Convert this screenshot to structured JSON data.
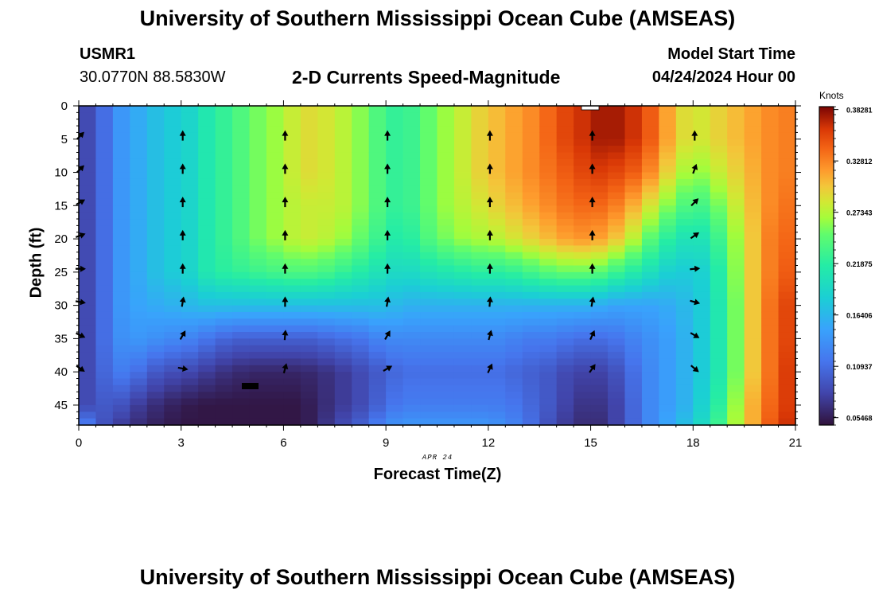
{
  "header": {
    "title": "University of Southern Mississippi Ocean Cube (AMSEAS)",
    "station_id": "USMR1",
    "coords": "30.0770N  88.5830W",
    "subtitle": "2-D Currents Speed-Magnitude",
    "model_start_label": "Model Start Time",
    "model_start_value": "04/24/2024 Hour 00"
  },
  "footer": {
    "title": "University of Southern Mississippi Ocean Cube (AMSEAS)"
  },
  "chart_data": {
    "type": "heatmap",
    "title": "2-D Currents Speed-Magnitude",
    "xlabel": "Forecast Time(Z)",
    "ylabel": "Depth (ft)",
    "date_label": "APR 24",
    "x_ticks": [
      0,
      3,
      6,
      9,
      12,
      15,
      18,
      21
    ],
    "y_ticks": [
      0,
      5,
      10,
      15,
      20,
      25,
      30,
      35,
      40,
      45
    ],
    "xlim": [
      0,
      21
    ],
    "ylim": [
      0,
      48
    ],
    "colorbar": {
      "unit": "Knots",
      "min": 0.0468,
      "max": 0.3859,
      "tick_values": [
        0.38281,
        0.32812,
        0.27343,
        0.21875,
        0.16406,
        0.10937,
        0.05468
      ],
      "tick_labels": [
        "0.38281",
        "0.32812",
        "0.27343",
        "0.21875",
        "0.16406",
        "0.10937",
        "0.05468"
      ]
    },
    "grid_times": [
      0,
      0.5,
      1,
      1.5,
      2,
      2.5,
      3,
      3.5,
      4,
      4.5,
      5,
      5.5,
      6,
      6.5,
      7,
      7.5,
      8,
      8.5,
      9,
      9.5,
      10,
      10.5,
      11,
      11.5,
      12,
      12.5,
      13,
      13.5,
      14,
      14.5,
      15,
      15.5,
      16,
      16.5,
      17,
      17.5,
      18,
      18.5,
      19,
      19.5,
      20,
      20.5,
      21
    ],
    "grid_depths": [
      0,
      5,
      10,
      15,
      20,
      25,
      30,
      35,
      40,
      45,
      48
    ],
    "speed_grid": [
      [
        0.08,
        0.08,
        0.08,
        0.08,
        0.08,
        0.08,
        0.08,
        0.08,
        0.08,
        0.08,
        0.14
      ],
      [
        0.09,
        0.09,
        0.09,
        0.09,
        0.09,
        0.09,
        0.09,
        0.09,
        0.09,
        0.09,
        0.1
      ],
      [
        0.13,
        0.13,
        0.13,
        0.13,
        0.13,
        0.13,
        0.13,
        0.13,
        0.12,
        0.1,
        0.08
      ],
      [
        0.15,
        0.15,
        0.15,
        0.15,
        0.15,
        0.15,
        0.15,
        0.14,
        0.12,
        0.08,
        0.07
      ],
      [
        0.16,
        0.16,
        0.16,
        0.16,
        0.16,
        0.16,
        0.15,
        0.14,
        0.1,
        0.07,
        0.06
      ],
      [
        0.18,
        0.18,
        0.18,
        0.18,
        0.18,
        0.18,
        0.16,
        0.13,
        0.09,
        0.06,
        0.055
      ],
      [
        0.18,
        0.18,
        0.18,
        0.18,
        0.18,
        0.18,
        0.16,
        0.13,
        0.085,
        0.055,
        0.05
      ],
      [
        0.2,
        0.2,
        0.2,
        0.2,
        0.2,
        0.2,
        0.17,
        0.12,
        0.08,
        0.05,
        0.05
      ],
      [
        0.22,
        0.22,
        0.22,
        0.22,
        0.22,
        0.22,
        0.17,
        0.11,
        0.07,
        0.05,
        0.05
      ],
      [
        0.23,
        0.23,
        0.23,
        0.23,
        0.23,
        0.22,
        0.17,
        0.1,
        0.065,
        0.05,
        0.05
      ],
      [
        0.25,
        0.25,
        0.25,
        0.25,
        0.25,
        0.23,
        0.17,
        0.1,
        0.06,
        0.05,
        0.05
      ],
      [
        0.26,
        0.26,
        0.26,
        0.26,
        0.26,
        0.23,
        0.17,
        0.1,
        0.06,
        0.05,
        0.05
      ],
      [
        0.27,
        0.27,
        0.27,
        0.27,
        0.27,
        0.24,
        0.17,
        0.1,
        0.06,
        0.05,
        0.05
      ],
      [
        0.29,
        0.29,
        0.29,
        0.28,
        0.28,
        0.24,
        0.17,
        0.1,
        0.06,
        0.05,
        0.05
      ],
      [
        0.29,
        0.29,
        0.29,
        0.28,
        0.28,
        0.24,
        0.17,
        0.1,
        0.065,
        0.06,
        0.06
      ],
      [
        0.28,
        0.28,
        0.28,
        0.28,
        0.27,
        0.23,
        0.17,
        0.11,
        0.07,
        0.07,
        0.08
      ],
      [
        0.27,
        0.27,
        0.27,
        0.27,
        0.26,
        0.22,
        0.17,
        0.11,
        0.08,
        0.08,
        0.09
      ],
      [
        0.25,
        0.25,
        0.25,
        0.25,
        0.24,
        0.21,
        0.17,
        0.12,
        0.09,
        0.09,
        0.11
      ],
      [
        0.23,
        0.23,
        0.23,
        0.23,
        0.22,
        0.2,
        0.17,
        0.13,
        0.1,
        0.11,
        0.13
      ],
      [
        0.22,
        0.22,
        0.22,
        0.22,
        0.21,
        0.19,
        0.16,
        0.13,
        0.11,
        0.12,
        0.14
      ],
      [
        0.24,
        0.24,
        0.24,
        0.24,
        0.23,
        0.2,
        0.16,
        0.13,
        0.11,
        0.12,
        0.14
      ],
      [
        0.26,
        0.26,
        0.26,
        0.26,
        0.25,
        0.21,
        0.16,
        0.13,
        0.11,
        0.12,
        0.14
      ],
      [
        0.27,
        0.27,
        0.27,
        0.27,
        0.26,
        0.21,
        0.16,
        0.13,
        0.11,
        0.12,
        0.14
      ],
      [
        0.29,
        0.29,
        0.29,
        0.28,
        0.27,
        0.22,
        0.16,
        0.13,
        0.11,
        0.12,
        0.14
      ],
      [
        0.3,
        0.3,
        0.3,
        0.29,
        0.27,
        0.22,
        0.16,
        0.13,
        0.11,
        0.12,
        0.14
      ],
      [
        0.31,
        0.31,
        0.31,
        0.3,
        0.28,
        0.22,
        0.16,
        0.13,
        0.11,
        0.12,
        0.13
      ],
      [
        0.32,
        0.32,
        0.32,
        0.31,
        0.29,
        0.23,
        0.16,
        0.12,
        0.1,
        0.11,
        0.12
      ],
      [
        0.33,
        0.33,
        0.33,
        0.32,
        0.3,
        0.24,
        0.16,
        0.12,
        0.1,
        0.1,
        0.1
      ],
      [
        0.35,
        0.35,
        0.34,
        0.33,
        0.31,
        0.25,
        0.16,
        0.12,
        0.09,
        0.09,
        0.08
      ],
      [
        0.36,
        0.36,
        0.35,
        0.34,
        0.32,
        0.25,
        0.16,
        0.11,
        0.08,
        0.07,
        0.07
      ],
      [
        0.37,
        0.37,
        0.36,
        0.34,
        0.32,
        0.25,
        0.16,
        0.11,
        0.08,
        0.07,
        0.06
      ],
      [
        0.38,
        0.38,
        0.36,
        0.34,
        0.31,
        0.24,
        0.15,
        0.11,
        0.08,
        0.07,
        0.07
      ],
      [
        0.37,
        0.37,
        0.35,
        0.32,
        0.29,
        0.22,
        0.15,
        0.12,
        0.1,
        0.09,
        0.09
      ],
      [
        0.36,
        0.36,
        0.34,
        0.3,
        0.26,
        0.21,
        0.15,
        0.13,
        0.12,
        0.12,
        0.12
      ],
      [
        0.33,
        0.33,
        0.31,
        0.27,
        0.23,
        0.19,
        0.15,
        0.14,
        0.14,
        0.14,
        0.14
      ],
      [
        0.3,
        0.3,
        0.28,
        0.25,
        0.21,
        0.18,
        0.16,
        0.15,
        0.15,
        0.15,
        0.16
      ],
      [
        0.28,
        0.28,
        0.26,
        0.23,
        0.2,
        0.18,
        0.17,
        0.17,
        0.17,
        0.17,
        0.18
      ],
      [
        0.29,
        0.29,
        0.27,
        0.24,
        0.21,
        0.19,
        0.19,
        0.19,
        0.19,
        0.2,
        0.21
      ],
      [
        0.3,
        0.3,
        0.29,
        0.27,
        0.25,
        0.24,
        0.23,
        0.23,
        0.23,
        0.24,
        0.25
      ],
      [
        0.31,
        0.31,
        0.3,
        0.29,
        0.28,
        0.28,
        0.28,
        0.28,
        0.28,
        0.29,
        0.29
      ],
      [
        0.32,
        0.32,
        0.32,
        0.32,
        0.32,
        0.32,
        0.32,
        0.32,
        0.32,
        0.33,
        0.33
      ],
      [
        0.33,
        0.33,
        0.33,
        0.33,
        0.34,
        0.34,
        0.35,
        0.35,
        0.35,
        0.35,
        0.36
      ],
      [
        0.33,
        0.33,
        0.33,
        0.34,
        0.34,
        0.35,
        0.36,
        0.36,
        0.37,
        0.37,
        0.37
      ]
    ],
    "arrow_depths": [
      4.5,
      9.5,
      14.5,
      19.5,
      24.5,
      29.5,
      34.5,
      39.5
    ],
    "vectors": [
      {
        "time": 0,
        "dirs": [
          45,
          45,
          60,
          70,
          90,
          100,
          115,
          125
        ]
      },
      {
        "time": 3,
        "dirs": [
          0,
          0,
          0,
          0,
          0,
          10,
          30,
          100
        ]
      },
      {
        "time": 6,
        "dirs": [
          0,
          0,
          0,
          0,
          0,
          0,
          5,
          15
        ]
      },
      {
        "time": 9,
        "dirs": [
          0,
          0,
          0,
          0,
          0,
          10,
          30,
          60
        ]
      },
      {
        "time": 12,
        "dirs": [
          0,
          0,
          0,
          0,
          0,
          5,
          15,
          25
        ]
      },
      {
        "time": 15,
        "dirs": [
          0,
          0,
          0,
          0,
          0,
          10,
          25,
          35
        ]
      },
      {
        "time": 18,
        "dirs": [
          0,
          20,
          45,
          55,
          85,
          105,
          120,
          130
        ]
      }
    ]
  }
}
